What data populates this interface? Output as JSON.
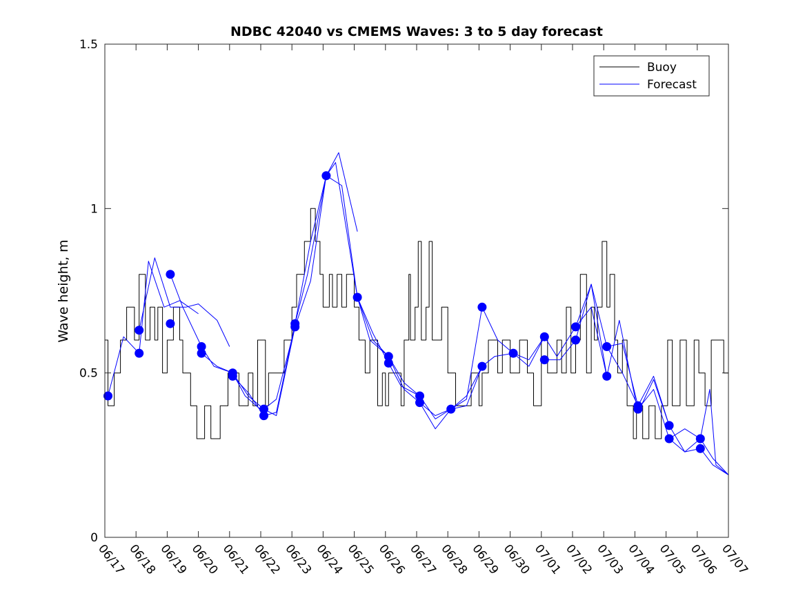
{
  "chart_data": {
    "type": "line",
    "title": "NDBC 42040 vs CMEMS Waves: 3 to 5 day forecast",
    "xlabel": "",
    "ylabel": "Wave height, m",
    "xlim": [
      "06/17",
      "07/07"
    ],
    "ylim": [
      0,
      1.5
    ],
    "yticks": [
      0,
      0.5,
      1,
      1.5
    ],
    "ytick_labels": [
      "0",
      "0.5",
      "1",
      "1.5"
    ],
    "xtick_labels": [
      "06/17",
      "06/18",
      "06/19",
      "06/20",
      "06/21",
      "06/22",
      "06/23",
      "06/24",
      "06/25",
      "06/26",
      "06/27",
      "06/28",
      "06/29",
      "06/30",
      "07/01",
      "07/02",
      "07/03",
      "07/04",
      "07/05",
      "07/06",
      "07/07"
    ],
    "x_unit": "days since 06/17 00:00",
    "grid": false,
    "legend": {
      "position": "top-right",
      "entries": [
        "Buoy",
        "Forecast"
      ]
    },
    "colors": {
      "buoy": "#000000",
      "forecast": "#0000ff",
      "marker": "#0000ff"
    },
    "series": [
      {
        "name": "Buoy",
        "style": "step",
        "x": [
          0,
          0.1,
          0.3,
          0.5,
          0.55,
          0.7,
          0.95,
          1.1,
          1.3,
          1.45,
          1.6,
          1.7,
          1.85,
          2.0,
          2.2,
          2.4,
          2.5,
          2.75,
          2.95,
          3.2,
          3.4,
          3.7,
          3.95,
          4.3,
          4.6,
          4.75,
          4.9,
          5.15,
          5.25,
          5.55,
          5.75,
          6.0,
          6.15,
          6.4,
          6.6,
          6.75,
          6.9,
          7.0,
          7.2,
          7.3,
          7.45,
          7.6,
          7.75,
          8.0,
          8.15,
          8.35,
          8.5,
          8.75,
          8.9,
          9.0,
          9.1,
          9.25,
          9.5,
          9.6,
          9.75,
          9.8,
          9.95,
          10.05,
          10.15,
          10.3,
          10.4,
          10.5,
          10.8,
          11.0,
          11.25,
          11.5,
          11.75,
          12.0,
          12.1,
          12.3,
          12.6,
          12.75,
          13.0,
          13.3,
          13.55,
          13.75,
          14.0,
          14.2,
          14.5,
          14.65,
          14.8,
          14.95,
          15.1,
          15.25,
          15.45,
          15.6,
          15.7,
          15.8,
          15.95,
          16.1,
          16.2,
          16.35,
          16.45,
          16.6,
          16.75,
          16.95,
          17.05,
          17.25,
          17.45,
          17.65,
          17.85,
          18.05,
          18.2,
          18.45,
          18.65,
          18.9,
          19.05,
          19.25,
          19.45,
          19.7,
          19.85,
          20.0
        ],
        "y": [
          0.6,
          0.4,
          0.5,
          0.6,
          0.6,
          0.7,
          0.6,
          0.8,
          0.6,
          0.7,
          0.6,
          0.7,
          0.5,
          0.6,
          0.7,
          0.6,
          0.5,
          0.4,
          0.3,
          0.4,
          0.3,
          0.4,
          0.5,
          0.4,
          0.5,
          0.4,
          0.6,
          0.4,
          0.5,
          0.5,
          0.6,
          0.7,
          0.8,
          0.9,
          1.0,
          0.9,
          0.8,
          0.7,
          0.8,
          0.7,
          0.8,
          0.7,
          0.8,
          0.7,
          0.6,
          0.5,
          0.6,
          0.4,
          0.5,
          0.4,
          0.5,
          0.5,
          0.4,
          0.6,
          0.8,
          0.6,
          0.7,
          0.9,
          0.6,
          0.7,
          0.9,
          0.6,
          0.7,
          0.5,
          0.4,
          0.4,
          0.5,
          0.4,
          0.5,
          0.6,
          0.5,
          0.6,
          0.5,
          0.6,
          0.5,
          0.4,
          0.6,
          0.5,
          0.6,
          0.5,
          0.7,
          0.5,
          0.6,
          0.8,
          0.5,
          0.7,
          0.6,
          0.7,
          0.9,
          0.7,
          0.8,
          0.6,
          0.5,
          0.6,
          0.4,
          0.3,
          0.4,
          0.3,
          0.4,
          0.3,
          0.4,
          0.6,
          0.4,
          0.6,
          0.4,
          0.6,
          0.5,
          0.4,
          0.6,
          0.6,
          0.5,
          0.5
        ]
      },
      {
        "name": "Forecast",
        "x": [
          0.1,
          0.6,
          1.1,
          1.4,
          1.9,
          2.4,
          3.0
        ],
        "y": [
          0.43,
          0.61,
          0.56,
          0.84,
          0.7,
          0.72,
          0.68
        ]
      },
      {
        "name": "Forecast",
        "x": [
          1.1,
          1.6,
          2.1,
          2.6,
          3.0,
          3.6,
          4.0
        ],
        "y": [
          0.63,
          0.85,
          0.7,
          0.7,
          0.71,
          0.66,
          0.58
        ]
      },
      {
        "name": "Forecast",
        "x": [
          2.1,
          2.5,
          3.1,
          3.5,
          4.1,
          4.5,
          5.1
        ],
        "y": [
          0.8,
          0.7,
          0.58,
          0.52,
          0.5,
          0.43,
          0.38
        ]
      },
      {
        "name": "Forecast",
        "x": [
          3.1,
          3.6,
          4.1,
          4.6,
          5.1,
          5.5,
          6.1
        ],
        "y": [
          0.56,
          0.52,
          0.5,
          0.43,
          0.39,
          0.42,
          0.64
        ]
      },
      {
        "name": "Forecast",
        "x": [
          4.1,
          4.6,
          5.1,
          5.5,
          6.1,
          6.5,
          7.1
        ],
        "y": [
          0.49,
          0.44,
          0.37,
          0.38,
          0.65,
          0.8,
          1.1
        ]
      },
      {
        "name": "Forecast",
        "x": [
          5.1,
          5.5,
          6.1,
          6.6,
          7.1,
          7.5,
          8.1
        ],
        "y": [
          0.39,
          0.37,
          0.64,
          0.78,
          1.1,
          1.17,
          0.93
        ]
      },
      {
        "name": "Forecast",
        "x": [
          6.1,
          6.6,
          7.1,
          7.4,
          8.1,
          8.5,
          9.1
        ],
        "y": [
          0.65,
          0.9,
          1.1,
          1.14,
          0.73,
          0.6,
          0.55
        ]
      },
      {
        "name": "Forecast",
        "x": [
          7.1,
          7.6,
          8.1,
          8.6,
          9.1,
          9.5,
          10.1
        ],
        "y": [
          1.1,
          1.07,
          0.73,
          0.62,
          0.53,
          0.46,
          0.43
        ]
      },
      {
        "name": "Forecast",
        "x": [
          8.1,
          8.6,
          9.1,
          9.6,
          10.1,
          10.6,
          11.1
        ],
        "y": [
          0.73,
          0.6,
          0.55,
          0.45,
          0.41,
          0.37,
          0.39
        ]
      },
      {
        "name": "Forecast",
        "x": [
          9.1,
          9.6,
          10.1,
          10.6,
          11.1,
          11.6,
          12.1
        ],
        "y": [
          0.55,
          0.47,
          0.43,
          0.36,
          0.39,
          0.43,
          0.52
        ]
      },
      {
        "name": "Forecast",
        "x": [
          10.1,
          10.6,
          11.1,
          11.6,
          12.1,
          12.5,
          13.1
        ],
        "y": [
          0.41,
          0.33,
          0.39,
          0.4,
          0.52,
          0.55,
          0.56
        ]
      },
      {
        "name": "Forecast",
        "x": [
          11.1,
          11.6,
          12.1,
          12.6,
          13.1,
          13.6,
          14.1
        ],
        "y": [
          0.39,
          0.42,
          0.7,
          0.6,
          0.56,
          0.54,
          0.61
        ]
      },
      {
        "name": "Forecast",
        "x": [
          13.1,
          13.6,
          14.1,
          14.5,
          15.1,
          15.6,
          16.1
        ],
        "y": [
          0.56,
          0.52,
          0.61,
          0.55,
          0.64,
          0.77,
          0.49
        ]
      },
      {
        "name": "Forecast",
        "x": [
          14.1,
          14.6,
          15.1,
          15.6,
          16.1,
          16.6,
          17.1
        ],
        "y": [
          0.54,
          0.54,
          0.6,
          0.77,
          0.58,
          0.59,
          0.4
        ]
      },
      {
        "name": "Forecast",
        "x": [
          15.1,
          15.6,
          16.1,
          16.5,
          17.1,
          17.6,
          18.1
        ],
        "y": [
          0.64,
          0.7,
          0.49,
          0.66,
          0.38,
          0.48,
          0.34
        ]
      },
      {
        "name": "Forecast",
        "x": [
          16.1,
          16.6,
          17.1,
          17.6,
          18.1,
          18.6,
          19.1
        ],
        "y": [
          0.58,
          0.5,
          0.4,
          0.49,
          0.34,
          0.26,
          0.27
        ]
      },
      {
        "name": "Forecast",
        "x": [
          17.1,
          17.6,
          18.1,
          18.6,
          19.1,
          19.5,
          20.0
        ],
        "y": [
          0.39,
          0.45,
          0.3,
          0.33,
          0.3,
          0.24,
          0.19
        ]
      },
      {
        "name": "Forecast",
        "x": [
          18.1,
          18.6,
          19.1,
          19.4,
          19.6,
          20.0
        ],
        "y": [
          0.3,
          0.26,
          0.3,
          0.45,
          0.22,
          0.19
        ]
      },
      {
        "name": "Forecast",
        "x": [
          19.1,
          19.5,
          20.0
        ],
        "y": [
          0.27,
          0.22,
          0.19
        ]
      }
    ],
    "markers": {
      "x": [
        0.1,
        1.1,
        1.1,
        2.1,
        2.1,
        3.1,
        3.1,
        4.1,
        4.1,
        5.1,
        5.1,
        6.1,
        6.1,
        7.1,
        8.1,
        9.1,
        9.1,
        10.1,
        10.1,
        11.1,
        12.1,
        12.1,
        13.1,
        14.1,
        14.1,
        15.1,
        15.1,
        16.1,
        16.1,
        17.1,
        17.1,
        18.1,
        18.1,
        19.1,
        19.1
      ],
      "y": [
        0.43,
        0.63,
        0.56,
        0.8,
        0.65,
        0.58,
        0.56,
        0.5,
        0.49,
        0.39,
        0.37,
        0.65,
        0.64,
        1.1,
        0.73,
        0.55,
        0.53,
        0.43,
        0.41,
        0.39,
        0.7,
        0.52,
        0.56,
        0.61,
        0.54,
        0.64,
        0.6,
        0.58,
        0.49,
        0.4,
        0.39,
        0.34,
        0.3,
        0.3,
        0.27
      ]
    }
  }
}
